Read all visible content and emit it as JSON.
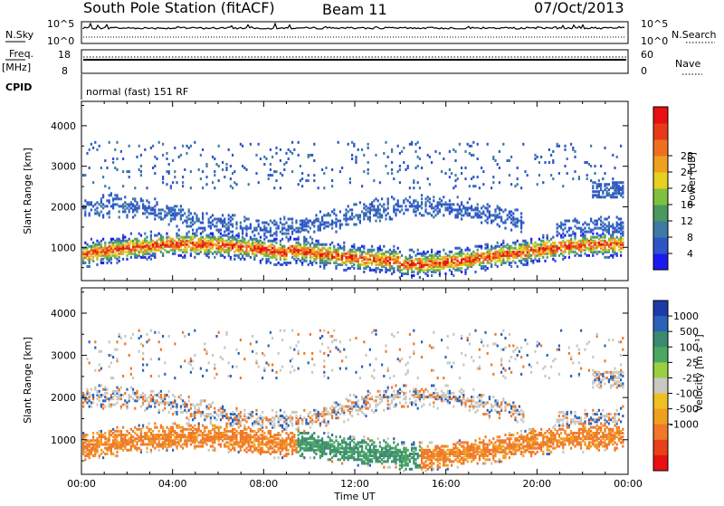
{
  "header": {
    "station": "South Pole Station (fitACF)",
    "beam": "Beam 11",
    "date": "07/Oct/2013"
  },
  "top_panels": {
    "nsky_label": "N.Sky",
    "nsky_ticks": [
      "10^5",
      "10^0"
    ],
    "nsearch_label": "N.Search",
    "nsearch_ticks": [
      "10^5",
      "10^0"
    ],
    "freq_label": "Freq.",
    "freq_unit": "[MHz]",
    "freq_ticks": [
      "18",
      "8"
    ],
    "nave_label": "Nave",
    "nave_ticks": [
      "60",
      "0"
    ],
    "cpid_label": "CPID",
    "cpid_value": "normal (fast) 151 RF"
  },
  "chart_data": [
    {
      "type": "heatmap",
      "name": "power",
      "xlabel": "",
      "ylabel": "Slant Range [km]",
      "x_ticks": [
        "00:00",
        "04:00",
        "08:00",
        "12:00",
        "16:00",
        "20:00",
        "00:00"
      ],
      "y_ticks": [
        "1000",
        "2000",
        "3000",
        "4000"
      ],
      "ylim": [
        180,
        4600
      ],
      "xlim": [
        0,
        24
      ],
      "colorbar": {
        "label": "Power [dB]",
        "ticks": [
          "4",
          "8",
          "12",
          "16",
          "20",
          "24",
          "28"
        ],
        "colors": [
          "#1a1af0",
          "#2d55c8",
          "#3d7aa6",
          "#4a9960",
          "#7fc040",
          "#e6d020",
          "#f0a020",
          "#f07020",
          "#e83a18",
          "#e81010"
        ]
      }
    },
    {
      "type": "heatmap",
      "name": "velocity",
      "xlabel": "Time UT",
      "ylabel": "Slant Range [km]",
      "x_ticks": [
        "00:00",
        "04:00",
        "08:00",
        "12:00",
        "16:00",
        "20:00",
        "00:00"
      ],
      "y_ticks": [
        "1000",
        "2000",
        "3000",
        "4000"
      ],
      "ylim": [
        180,
        4600
      ],
      "xlim": [
        0,
        24
      ],
      "colorbar": {
        "label": "Velocity [m s⁻¹]",
        "ticks": [
          "1000",
          "500",
          "100",
          "25",
          "-25",
          "-100",
          "-500",
          "-1000"
        ],
        "colors": [
          "#1e3aa8",
          "#2a62b8",
          "#3a8a70",
          "#4aa860",
          "#9ad040",
          "#c8c8c0",
          "#f0c020",
          "#f0a020",
          "#f07828",
          "#e84018",
          "#e81010"
        ]
      }
    }
  ]
}
